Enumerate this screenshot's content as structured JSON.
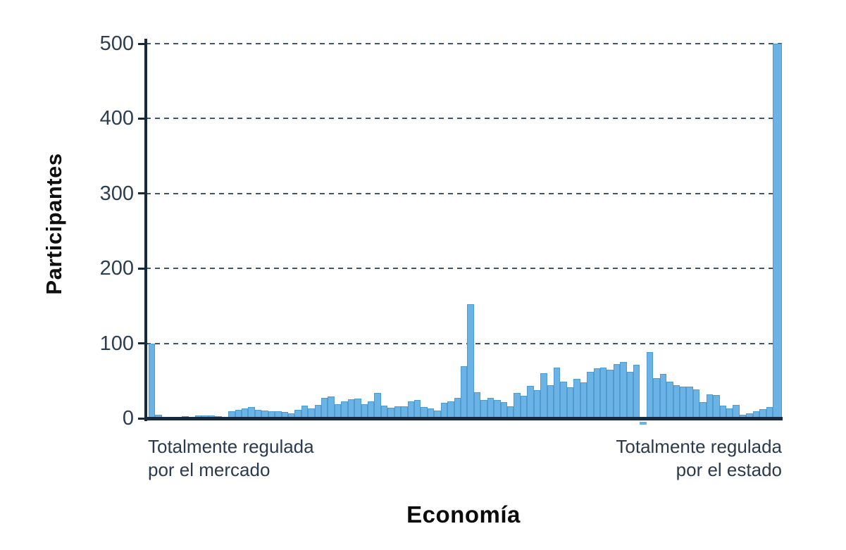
{
  "chart_data": {
    "type": "bar",
    "subtype": "histogram",
    "title": "",
    "xlabel": "Economía",
    "ylabel": "Participantes",
    "x_axis_end_labels": {
      "left": [
        "Totalmente regulada",
        "por el mercado"
      ],
      "right": [
        "Totalmente regulada",
        "por el estado"
      ]
    },
    "yticks": [
      0,
      100,
      200,
      300,
      400,
      500
    ],
    "ylim": [
      0,
      500
    ],
    "xlim_note": "x axis unlabeled numerically; scale runs from fully market-regulated (left) to fully state-regulated (right)",
    "grid": "horizontal dashed lines at each y tick",
    "legend": "none",
    "values": [
      100,
      5,
      2,
      2,
      2,
      3,
      2,
      4,
      4,
      4,
      3,
      2,
      9,
      11,
      13,
      15,
      11,
      10,
      9,
      9,
      8,
      7,
      11,
      17,
      13,
      18,
      27,
      29,
      19,
      23,
      25,
      26,
      19,
      23,
      34,
      17,
      14,
      16,
      16,
      23,
      24,
      15,
      13,
      10,
      21,
      23,
      27,
      70,
      152,
      35,
      24,
      27,
      24,
      22,
      16,
      34,
      30,
      43,
      38,
      60,
      44,
      68,
      49,
      41,
      53,
      48,
      62,
      67,
      68,
      65,
      72,
      75,
      62,
      71,
      -4,
      88,
      54,
      59,
      49,
      44,
      42,
      42,
      39,
      22,
      32,
      31,
      17,
      13,
      18,
      5,
      7,
      9,
      12,
      15,
      500
    ],
    "notes": "first bin reaches exactly 100; central spike reaches ~152; rightmost bin is clipped at the 500 axis maximum; one bin near the right shows a tiny stub below the zero line (~-4)",
    "colors": {
      "bar_fill": "#6cb3e5",
      "bar_edge": "#4e9bd1",
      "axis": "#16293d",
      "gridline": "#42566a",
      "tick_label": "#2b3e52",
      "axis_title": "#0f0f0f",
      "end_label": "#2b3a4d",
      "background": "#ffffff"
    }
  }
}
